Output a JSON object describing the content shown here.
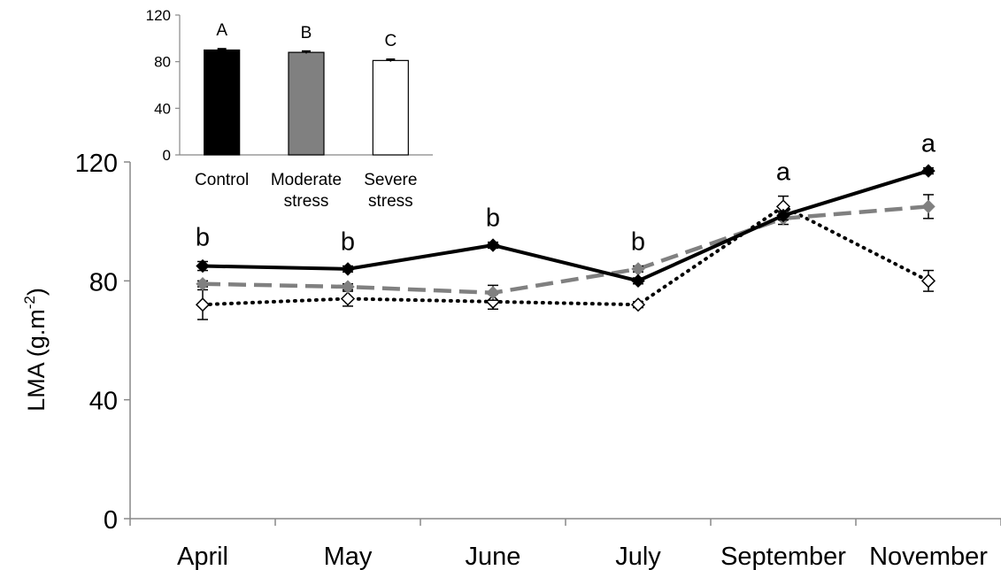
{
  "chart_data": [
    {
      "type": "line",
      "ylabel": "LMA (g.m",
      "ylabel_sup": "-2",
      "ylabel_close": ")",
      "ylim": [
        0,
        120
      ],
      "yticks": [
        "0",
        "40",
        "80",
        "120"
      ],
      "categories": [
        "April",
        "May",
        "June",
        "July",
        "September",
        "November"
      ],
      "letters": [
        "b",
        "b",
        "b",
        "b",
        "a",
        "a"
      ],
      "series": [
        {
          "values": [
            85,
            84,
            92,
            80,
            102,
            117
          ],
          "errors": [
            1.5,
            1.0,
            1.0,
            1.0,
            1.5,
            1.0
          ],
          "color": "#000000",
          "marker": "filled-diamond",
          "line": "solid"
        },
        {
          "values": [
            79,
            78,
            76,
            84,
            101,
            105
          ],
          "errors": [
            1.0,
            1.0,
            2.5,
            1.0,
            2.0,
            4.0
          ],
          "color": "#808080",
          "marker": "filled-diamond",
          "line": "dashed"
        },
        {
          "values": [
            72,
            74,
            73,
            72,
            105,
            80
          ],
          "errors": [
            5.0,
            2.5,
            2.5,
            1.0,
            3.5,
            3.5
          ],
          "color": "#000000",
          "marker": "open-diamond",
          "line": "dotted"
        }
      ],
      "grid": false,
      "legend": "none"
    },
    {
      "type": "bar",
      "categories": [
        "Control",
        "Moderate stress",
        "Severe stress"
      ],
      "category_lines": [
        [
          "Control"
        ],
        [
          "Moderate",
          "stress"
        ],
        [
          "Severe",
          "stress"
        ]
      ],
      "values": [
        90,
        88,
        81
      ],
      "errors": [
        1.0,
        1.0,
        1.0
      ],
      "colors": [
        "#000000",
        "#808080",
        "#ffffff"
      ],
      "letters": [
        "A",
        "B",
        "C"
      ],
      "ylim": [
        0,
        120
      ],
      "yticks": [
        "0",
        "40",
        "80",
        "120"
      ],
      "grid": false
    }
  ]
}
